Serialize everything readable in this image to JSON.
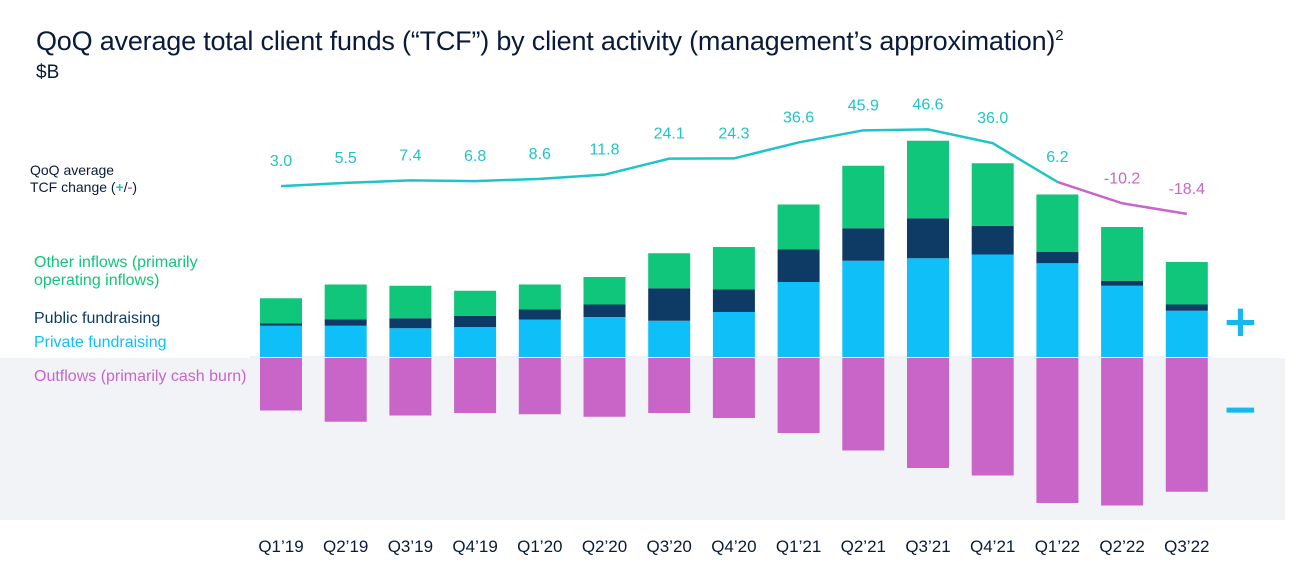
{
  "title": "QoQ average total client funds (“TCF”) by client activity (management’s approximation)",
  "title_superscript": "2",
  "subtitle": "$B",
  "tcf_label": {
    "line1": "QoQ average",
    "line2_prefix": "TCF change (",
    "plus": "+",
    "slash": "/",
    "minus": "-",
    "line2_suffix": ")"
  },
  "legend": {
    "other_inflows": "Other inflows (primarily operating inflows)",
    "public_fundraising": "Public fundraising",
    "private_fundraising": "Private fundraising",
    "outflows": "Outflows (primarily cash burn)"
  },
  "signs": {
    "plus": "+",
    "minus": "−"
  },
  "colors": {
    "private_fundraising": "#0fc0f8",
    "public_fundraising": "#0d3b66",
    "other_inflows": "#10c67a",
    "outflows": "#c965c9",
    "line_positive": "#20c4c8",
    "line_negative": "#c965c9",
    "plus_sign": "#16b8f0"
  },
  "chart_data": {
    "type": "bar",
    "stacked": true,
    "categories": [
      "Q1’19",
      "Q2’19",
      "Q3’19",
      "Q4’19",
      "Q1’20",
      "Q2’20",
      "Q3’20",
      "Q4’20",
      "Q1’21",
      "Q2’21",
      "Q3’21",
      "Q4’21",
      "Q1’22",
      "Q2’22",
      "Q3’22"
    ],
    "series": [
      {
        "name": "Private fundraising",
        "values": [
          12.5,
          12.5,
          11.5,
          12.0,
          15.0,
          16.0,
          14.5,
          18.0,
          30.0,
          38.5,
          39.5,
          41.0,
          37.5,
          28.5,
          18.5
        ]
      },
      {
        "name": "Public fundraising",
        "values": [
          1.0,
          2.5,
          4.0,
          4.5,
          4.0,
          5.0,
          13.0,
          9.0,
          13.0,
          13.0,
          16.0,
          11.5,
          4.5,
          2.0,
          2.5
        ]
      },
      {
        "name": "Other inflows (primarily operating inflows)",
        "values": [
          10.0,
          14.0,
          13.0,
          10.0,
          10.0,
          11.0,
          14.0,
          17.0,
          18.0,
          25.0,
          31.0,
          25.0,
          23.0,
          21.5,
          17.0
        ]
      },
      {
        "name": "Outflows (primarily cash burn)",
        "values": [
          -21.0,
          -25.5,
          -23.0,
          -22.0,
          -22.5,
          -23.5,
          -22.0,
          -24.0,
          -30.0,
          -37.0,
          -44.0,
          -47.0,
          -58.0,
          -59.0,
          -53.5
        ]
      }
    ],
    "line": {
      "name": "QoQ average TCF change",
      "values": [
        3.0,
        5.5,
        7.4,
        6.8,
        8.6,
        11.8,
        24.1,
        24.3,
        36.6,
        45.9,
        46.6,
        36.0,
        6.2,
        -10.2,
        -18.4
      ],
      "labels": [
        "3.0",
        "5.5",
        "7.4",
        "6.8",
        "8.6",
        "11.8",
        "24.1",
        "24.3",
        "36.6",
        "45.9",
        "46.6",
        "36.0",
        "6.2",
        "-10.2",
        "-18.4"
      ]
    }
  }
}
